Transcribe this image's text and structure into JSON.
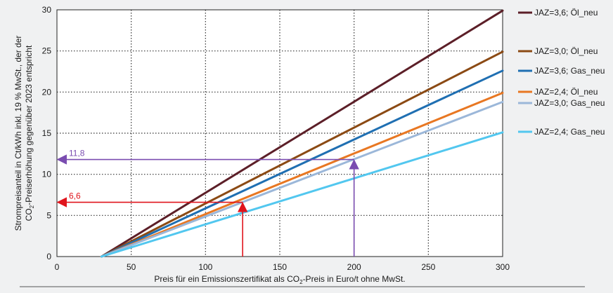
{
  "chart_data": {
    "type": "line",
    "xlabel": {
      "prefix": "Preis für ein Emissionszertifikat als CO",
      "sub": "2",
      "suffix": "-Preis in Euro/t ohne MwSt."
    },
    "ylabel_line1": "Strompreisanteil in Ct/kWh inkl. 19 % MwSt., der der",
    "ylabel_line2": {
      "prefix": "CO",
      "sub": "2",
      "suffix": "-Preiserhöhung gegenüber 2023 entspricht"
    },
    "xlim": [
      0,
      300
    ],
    "ylim": [
      0,
      30
    ],
    "x_ticks": [
      0,
      50,
      100,
      150,
      200,
      250,
      300
    ],
    "y_ticks": [
      0,
      5,
      10,
      15,
      20,
      25,
      30
    ],
    "grid": "dotted",
    "legend_position": "right",
    "series": [
      {
        "name": "JAZ=3,6; Öl_neu",
        "color": "#5c1f28",
        "x": [
          30,
          300
        ],
        "y": [
          0,
          29.9
        ]
      },
      {
        "name": "JAZ=3,0; Öl_neu",
        "color": "#8b4a14",
        "x": [
          30,
          300
        ],
        "y": [
          0,
          24.9
        ]
      },
      {
        "name": "JAZ=3,6; Gas_neu",
        "color": "#1f6fb2",
        "x": [
          30,
          300
        ],
        "y": [
          0,
          22.6
        ]
      },
      {
        "name": "JAZ=2,4; Öl_neu",
        "color": "#e87722",
        "x": [
          30,
          300
        ],
        "y": [
          0,
          19.9
        ]
      },
      {
        "name": "JAZ=3,0; Gas_neu",
        "color": "#9bb7d9",
        "x": [
          30,
          300
        ],
        "y": [
          0,
          18.8
        ]
      },
      {
        "name": "JAZ=2,4; Gas_neu",
        "color": "#52c7ef",
        "x": [
          30,
          300
        ],
        "y": [
          0,
          15.1
        ]
      }
    ],
    "annotations": [
      {
        "label": "11,8",
        "x": 200,
        "y": 11.8,
        "color": "#7a4cb0"
      },
      {
        "label": "6,6",
        "x": 125,
        "y": 6.6,
        "color": "#e0141c"
      }
    ]
  }
}
